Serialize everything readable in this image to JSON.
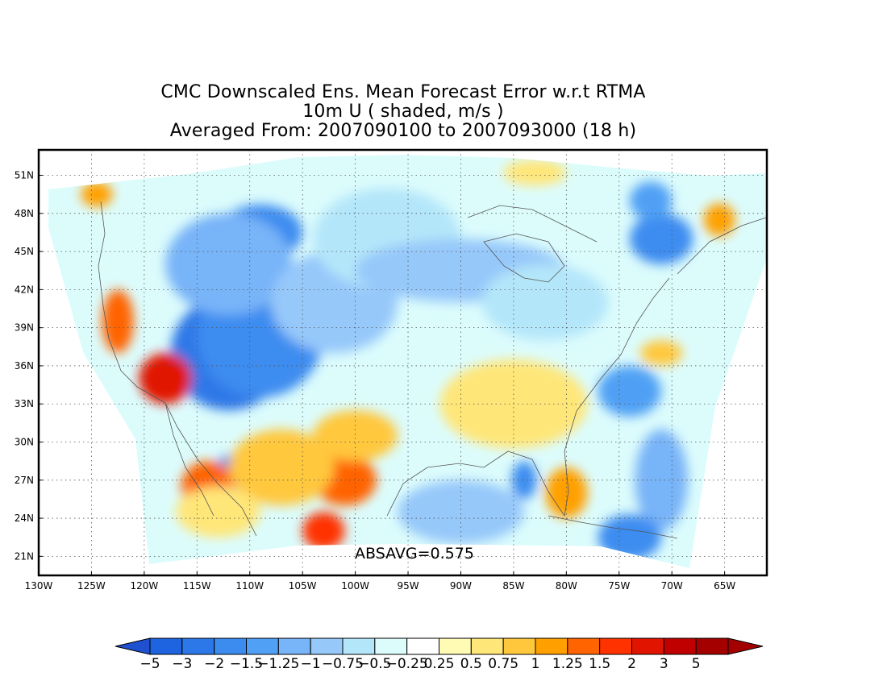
{
  "title": {
    "line1": "CMC Downscaled Ens. Mean Forecast Error w.r.t RTMA",
    "line2": "10m U ( shaded, m/s )",
    "line3": "Averaged From: 2007090100 to 2007093000 (18 h)"
  },
  "stat_label": "ABSAVG=0.575",
  "map": {
    "lon_range": [
      -130,
      -61
    ],
    "lat_range": [
      19.5,
      53
    ],
    "lat_labels": [
      "21N",
      "24N",
      "27N",
      "30N",
      "33N",
      "36N",
      "39N",
      "42N",
      "45N",
      "48N",
      "51N"
    ],
    "lat_values": [
      21,
      24,
      27,
      30,
      33,
      36,
      39,
      42,
      45,
      48,
      51
    ],
    "lon_labels": [
      "130W",
      "125W",
      "120W",
      "115W",
      "110W",
      "105W",
      "100W",
      "95W",
      "90W",
      "85W",
      "80W",
      "75W",
      "70W",
      "65W"
    ],
    "lon_values": [
      -130,
      -125,
      -120,
      -115,
      -110,
      -105,
      -100,
      -95,
      -90,
      -85,
      -80,
      -75,
      -70,
      -65
    ],
    "grid": "dotted"
  },
  "colorbar": {
    "labels": [
      "−5",
      "−3",
      "−2",
      "−1.5",
      "−1.25",
      "−1",
      "−0.75",
      "−0.5",
      "−0.25",
      "0.25",
      "0.5",
      "0.75",
      "1",
      "1.25",
      "1.5",
      "2",
      "3",
      "5"
    ],
    "colors": [
      "#1e64e0",
      "#2d78e8",
      "#3c8cf0",
      "#50a0f5",
      "#78b4f8",
      "#96c8fa",
      "#b4e6fa",
      "#dcfcfc",
      "#ffffff",
      "#fffab4",
      "#ffe678",
      "#ffc83c",
      "#ffa000",
      "#ff6400",
      "#ff3200",
      "#e11400",
      "#c00000",
      "#a50000"
    ],
    "arrow_left_color": "#1e50d0",
    "arrow_right_color": "#a50000"
  },
  "field_blobs": [
    {
      "lon": -112,
      "lat": 37,
      "rx": 5.5,
      "ry": 4.5,
      "color": "#2d78e8"
    },
    {
      "lon": -109,
      "lat": 38.5,
      "rx": 6,
      "ry": 5,
      "color": "#3c8cf0"
    },
    {
      "lon": -109,
      "lat": 46.5,
      "rx": 4,
      "ry": 2.2,
      "color": "#3c8cf0"
    },
    {
      "lon": -112,
      "lat": 44,
      "rx": 6,
      "ry": 4,
      "color": "#78b4f8"
    },
    {
      "lon": -102,
      "lat": 41,
      "rx": 6,
      "ry": 4,
      "color": "#96c8fa"
    },
    {
      "lon": -97,
      "lat": 46,
      "rx": 7,
      "ry": 4,
      "color": "#b4e6fa"
    },
    {
      "lon": -90,
      "lat": 43.5,
      "rx": 10,
      "ry": 2.5,
      "color": "#96c8fa"
    },
    {
      "lon": -82,
      "lat": 41,
      "rx": 6,
      "ry": 3,
      "color": "#b4e6fa"
    },
    {
      "lon": -71,
      "lat": 46,
      "rx": 3,
      "ry": 2,
      "color": "#3c8cf0"
    },
    {
      "lon": -72,
      "lat": 49,
      "rx": 2,
      "ry": 1.5,
      "color": "#50a0f5"
    },
    {
      "lon": -74,
      "lat": 34,
      "rx": 3,
      "ry": 2,
      "color": "#50a0f5"
    },
    {
      "lon": -71,
      "lat": 27,
      "rx": 2.5,
      "ry": 4,
      "color": "#78b4f8"
    },
    {
      "lon": -74,
      "lat": 22.5,
      "rx": 3,
      "ry": 1.8,
      "color": "#3c8cf0"
    },
    {
      "lon": -90,
      "lat": 24.5,
      "rx": 6,
      "ry": 2.5,
      "color": "#96c8fa"
    },
    {
      "lon": -84,
      "lat": 27,
      "rx": 1.2,
      "ry": 1.5,
      "color": "#3c8cf0"
    },
    {
      "lon": -112,
      "lat": 27.5,
      "rx": 1.2,
      "ry": 1.5,
      "color": "#3c8cf0"
    },
    {
      "lon": -118,
      "lat": 35,
      "rx": 2.5,
      "ry": 2,
      "color": "#e11400"
    },
    {
      "lon": -122.5,
      "lat": 39.5,
      "rx": 1.5,
      "ry": 2.5,
      "color": "#ff6400"
    },
    {
      "lon": -124.5,
      "lat": 49.5,
      "rx": 1.5,
      "ry": 1,
      "color": "#ffa000"
    },
    {
      "lon": -114,
      "lat": 26.5,
      "rx": 2.5,
      "ry": 2,
      "color": "#ff6400"
    },
    {
      "lon": -101,
      "lat": 27,
      "rx": 3,
      "ry": 2,
      "color": "#ff6400"
    },
    {
      "lon": -103,
      "lat": 23,
      "rx": 2,
      "ry": 1.5,
      "color": "#ff3200"
    },
    {
      "lon": -107,
      "lat": 28,
      "rx": 5,
      "ry": 3,
      "color": "#ffc83c"
    },
    {
      "lon": -100,
      "lat": 30.5,
      "rx": 4,
      "ry": 2,
      "color": "#ffc83c"
    },
    {
      "lon": -85,
      "lat": 33,
      "rx": 7,
      "ry": 3.5,
      "color": "#ffe678"
    },
    {
      "lon": -80,
      "lat": 26,
      "rx": 2,
      "ry": 2,
      "color": "#ffa000"
    },
    {
      "lon": -65.5,
      "lat": 47.5,
      "rx": 1.5,
      "ry": 1.3,
      "color": "#ffa000"
    },
    {
      "lon": -71,
      "lat": 37,
      "rx": 2,
      "ry": 1,
      "color": "#ffc83c"
    },
    {
      "lon": -83,
      "lat": 51.2,
      "rx": 3,
      "ry": 1,
      "color": "#ffe678"
    },
    {
      "lon": -113,
      "lat": 24.5,
      "rx": 4,
      "ry": 2,
      "color": "#ffe678"
    }
  ]
}
